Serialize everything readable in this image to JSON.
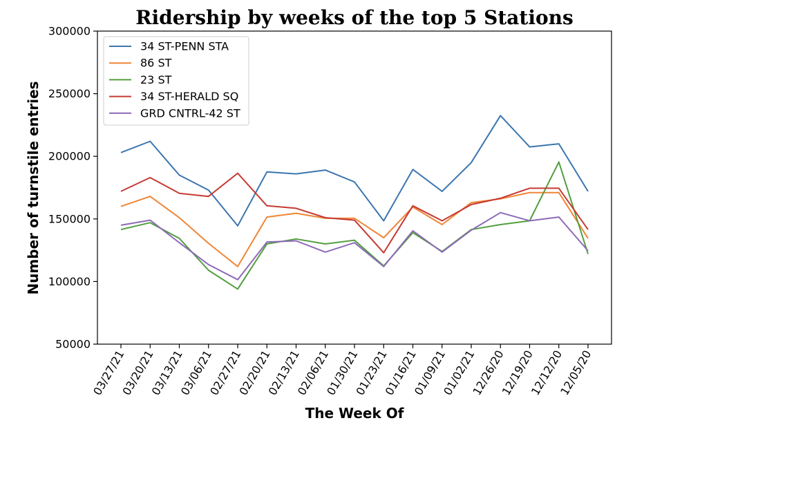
{
  "colors": {
    "title": "#2f4f4f",
    "axis_label": "#483d8b"
  },
  "chart_data": {
    "type": "line",
    "title": "Ridership by weeks of the top 5 Stations",
    "xlabel": "The Week Of",
    "ylabel": "Number of turnstile entries",
    "ylim": [
      50000,
      300000
    ],
    "yticks": [
      "50000",
      "100000",
      "150000",
      "200000",
      "250000",
      "300000"
    ],
    "grid": false,
    "legend_position": "upper-left",
    "categories": [
      "03/27/21",
      "03/20/21",
      "03/13/21",
      "03/06/21",
      "02/27/21",
      "02/20/21",
      "02/13/21",
      "02/06/21",
      "01/30/21",
      "01/23/21",
      "01/16/21",
      "01/09/21",
      "01/02/21",
      "12/26/20",
      "12/19/20",
      "12/12/20",
      "12/05/20"
    ],
    "series": [
      {
        "name": "34 ST-PENN STA",
        "color": "#3a75ae",
        "values": [
          203000,
          212000,
          185000,
          173000,
          144500,
          187500,
          186000,
          189000,
          179500,
          148500,
          189500,
          172000,
          195000,
          232500,
          207500,
          210000,
          172000
        ]
      },
      {
        "name": "86 ST",
        "color": "#ef8536",
        "values": [
          160000,
          168000,
          151000,
          130500,
          112000,
          151500,
          154500,
          150500,
          150500,
          135000,
          159500,
          145500,
          163000,
          166000,
          171000,
          171000,
          134500
        ]
      },
      {
        "name": "23 ST",
        "color": "#519e3e",
        "values": [
          141500,
          147000,
          134500,
          109000,
          94000,
          130000,
          134000,
          130000,
          133000,
          112500,
          139000,
          124000,
          141500,
          145500,
          148500,
          195500,
          122000
        ]
      },
      {
        "name": "34 ST-HERALD SQ",
        "color": "#c53932",
        "values": [
          172000,
          183000,
          170500,
          168000,
          186500,
          160500,
          158500,
          151000,
          149000,
          123000,
          160500,
          148500,
          161500,
          166500,
          174500,
          174500,
          141500
        ]
      },
      {
        "name": "GRD CNTRL-42 ST",
        "color": "#8d69b8",
        "values": [
          145000,
          149000,
          131000,
          113500,
          101500,
          131500,
          132500,
          123500,
          131000,
          112000,
          140500,
          123500,
          141000,
          155000,
          148500,
          151500,
          124500
        ]
      }
    ]
  }
}
